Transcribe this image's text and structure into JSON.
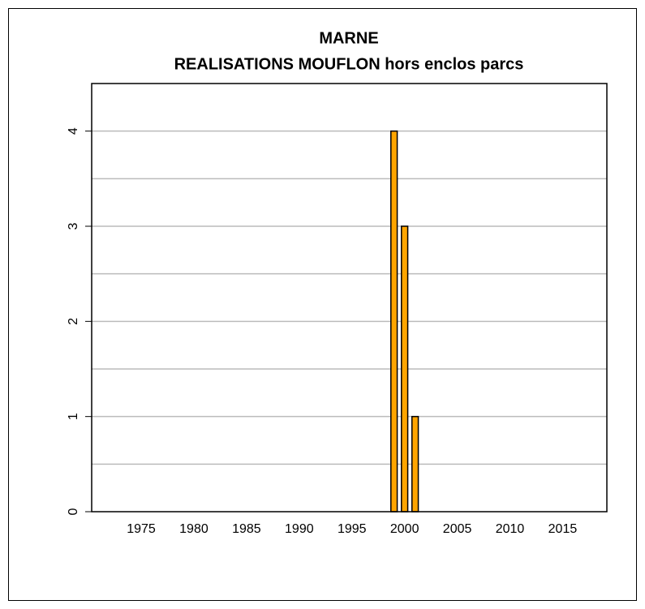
{
  "chart_data": {
    "type": "bar",
    "title": "MARNE",
    "subtitle": "REALISATIONS MOUFLON hors enclos parcs",
    "x": [
      1973,
      1974,
      1975,
      1976,
      1977,
      1978,
      1979,
      1980,
      1981,
      1982,
      1983,
      1984,
      1985,
      1986,
      1987,
      1988,
      1989,
      1990,
      1991,
      1992,
      1993,
      1994,
      1995,
      1996,
      1997,
      1998,
      1999,
      2000,
      2001,
      2002,
      2003,
      2004,
      2005,
      2006,
      2007,
      2008,
      2009,
      2010,
      2011,
      2012,
      2013,
      2014,
      2015,
      2016,
      2017
    ],
    "values": [
      0,
      0,
      0,
      0,
      0,
      0,
      0,
      0,
      0,
      0,
      0,
      0,
      0,
      0,
      0,
      0,
      0,
      0,
      0,
      0,
      0,
      0,
      0,
      0,
      0,
      0,
      4,
      3,
      1,
      0,
      0,
      0,
      0,
      0,
      0,
      0,
      0,
      0,
      0,
      0,
      0,
      0,
      0,
      0,
      0
    ],
    "color": "#ffa500",
    "xlim": [
      1970.3,
      2019.2
    ],
    "xticks": [
      1975,
      1980,
      1985,
      1990,
      1995,
      2000,
      2005,
      2010,
      2015
    ],
    "ylim": [
      0,
      4.5
    ],
    "yticks": [
      0,
      1,
      2,
      3,
      4
    ],
    "ygrid": [
      0.5,
      1,
      1.5,
      2,
      2.5,
      3,
      3.5,
      4
    ],
    "grid": true
  }
}
